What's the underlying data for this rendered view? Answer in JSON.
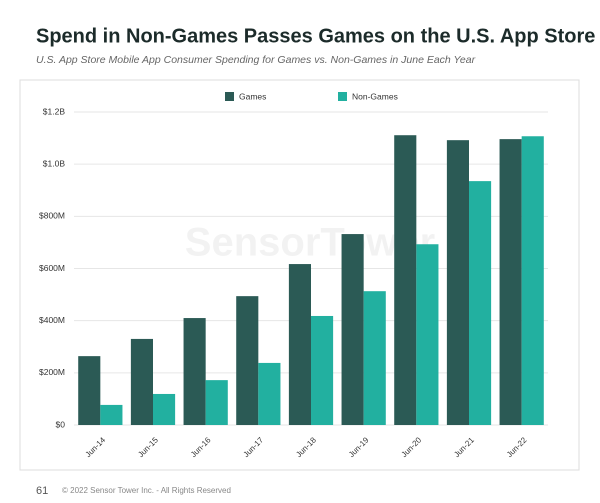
{
  "chart_data": {
    "type": "bar",
    "title": "Spend in Non-Games Passes Games on the U.S. App Store",
    "subtitle": "U.S. App Store Mobile App Consumer Spending for Games vs. Non-Games in June Each Year",
    "watermark": "SensorTower",
    "categories": [
      "Jun-14",
      "Jun-15",
      "Jun-16",
      "Jun-17",
      "Jun-18",
      "Jun-19",
      "Jun-20",
      "Jun-21",
      "Jun-22"
    ],
    "series": [
      {
        "name": "Games",
        "color": "#2b5a55",
        "values": [
          264000000,
          330000000,
          410000000,
          494000000,
          617000000,
          732000000,
          1111000000,
          1092000000,
          1096000000
        ]
      },
      {
        "name": "Non-Games",
        "color": "#22b0a0",
        "values": [
          77000000,
          119000000,
          172000000,
          238000000,
          418000000,
          513000000,
          693000000,
          935000000,
          1107000000
        ]
      }
    ],
    "ylim": [
      0,
      1200000000
    ],
    "yticks": [
      {
        "value": 0,
        "label": "$0"
      },
      {
        "value": 200000000,
        "label": "$200M"
      },
      {
        "value": 400000000,
        "label": "$400M"
      },
      {
        "value": 600000000,
        "label": "$600M"
      },
      {
        "value": 800000000,
        "label": "$800M"
      },
      {
        "value": 1000000000,
        "label": "$1.0B"
      },
      {
        "value": 1200000000,
        "label": "$1.2B"
      }
    ],
    "grid": true,
    "legend": "top"
  },
  "footer": {
    "page_number": "61",
    "copyright": "© 2022 Sensor Tower Inc. - All Rights Reserved"
  }
}
